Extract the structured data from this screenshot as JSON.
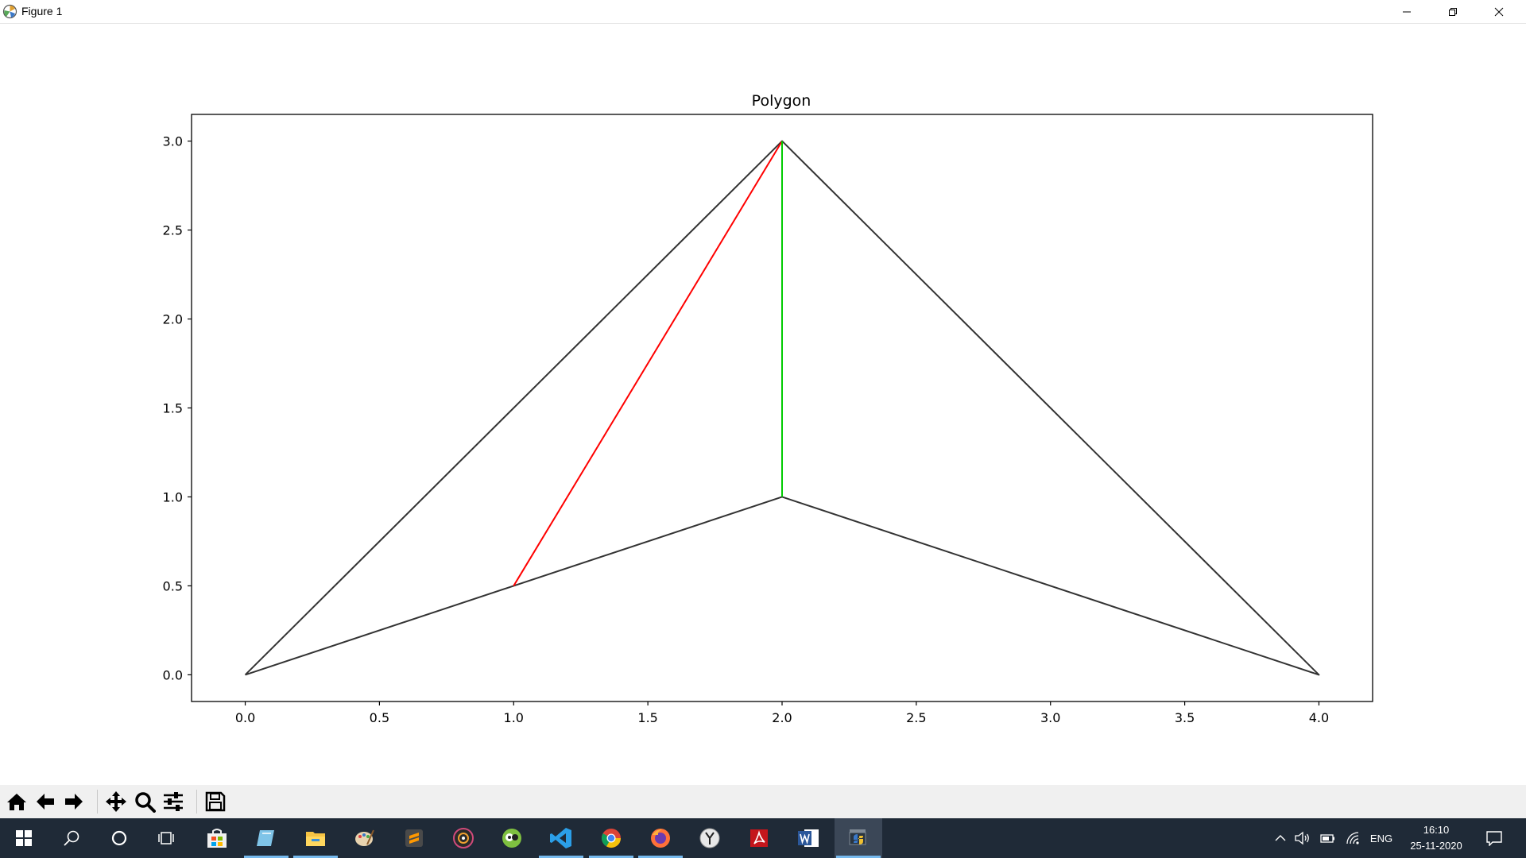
{
  "window": {
    "title": "Figure 1"
  },
  "chart_data": {
    "type": "line",
    "title": "Polygon",
    "xlabel": "",
    "ylabel": "",
    "xlim": [
      -0.2,
      4.2
    ],
    "ylim": [
      -0.15,
      3.15
    ],
    "xticks": [
      "0.0",
      "0.5",
      "1.0",
      "1.5",
      "2.0",
      "2.5",
      "3.0",
      "3.5",
      "4.0"
    ],
    "yticks": [
      "0.0",
      "0.5",
      "1.0",
      "1.5",
      "2.0",
      "2.5",
      "3.0"
    ],
    "grid": false,
    "series": [
      {
        "color": "#333333",
        "x": [
          0,
          2,
          4,
          2,
          0
        ],
        "y": [
          0,
          3,
          0,
          1,
          0
        ]
      },
      {
        "color": "#ff0000",
        "x": [
          1,
          2
        ],
        "y": [
          0.5,
          3
        ]
      },
      {
        "color": "#00cc00",
        "x": [
          2,
          2
        ],
        "y": [
          1,
          3
        ]
      }
    ]
  },
  "toolbar": {
    "buttons": [
      "home-icon",
      "back-arrow-icon",
      "forward-arrow-icon",
      "pan-icon",
      "zoom-icon",
      "configure-subplots-icon",
      "save-icon"
    ]
  },
  "taskbar": {
    "language": "ENG",
    "time": "16:10",
    "date": "25-11-2020",
    "accent": "#76b9ed"
  }
}
